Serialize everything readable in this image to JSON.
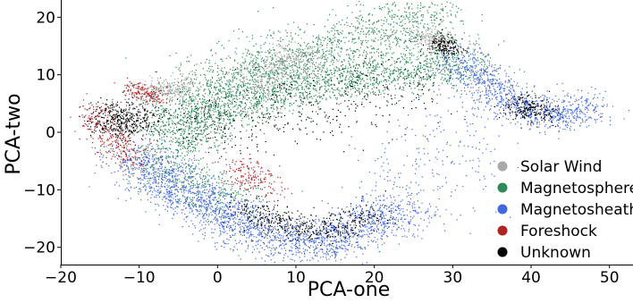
{
  "chart_data": {
    "type": "scatter",
    "title": "",
    "xlabel": "PCA-one",
    "ylabel": "PCA-two",
    "xlim": [
      -20,
      53
    ],
    "ylim": [
      -23,
      23
    ],
    "xticks": [
      -20,
      -10,
      0,
      10,
      20,
      30,
      40,
      50
    ],
    "yticks": [
      -20,
      -10,
      0,
      10,
      20
    ],
    "xtick_labels": [
      "−20",
      "−10",
      "0",
      "10",
      "20",
      "30",
      "40",
      "50"
    ],
    "ytick_labels": [
      "−20",
      "−10",
      "0",
      "10",
      "20"
    ],
    "grid": false,
    "legend_position": "lower-right",
    "series": [
      {
        "name": "Magnetosphere",
        "color": "#2e8b57",
        "clusters": [
          {
            "path": [
              [
                -7,
                0
              ],
              [
                -2,
                7
              ],
              [
                5,
                11
              ],
              [
                13,
                14
              ],
              [
                22,
                18
              ],
              [
                28,
                20
              ]
            ],
            "spread": 3.2,
            "density": 1.0
          },
          {
            "path": [
              [
                -6,
                -3
              ],
              [
                0,
                4
              ],
              [
                10,
                8
              ],
              [
                20,
                10
              ],
              [
                33,
                12
              ]
            ],
            "spread": 2.4,
            "density": 1.0
          },
          {
            "path": [
              [
                -8,
                -5
              ],
              [
                -3,
                -9
              ],
              [
                3,
                -13
              ]
            ],
            "spread": 2.5,
            "density": 0.5
          }
        ]
      },
      {
        "name": "Solar Wind",
        "color": "#a9a9a9",
        "clusters": [
          {
            "path": [
              [
                -9,
                7
              ],
              [
                -4,
                8
              ]
            ],
            "spread": 1.3,
            "density": 0.5
          },
          {
            "path": [
              [
                4,
                8
              ],
              [
                8,
                12
              ],
              [
                12,
                14
              ]
            ],
            "spread": 1.6,
            "density": 0.5
          },
          {
            "path": [
              [
                26,
                17
              ],
              [
                29,
                15
              ]
            ],
            "spread": 0.9,
            "density": 0.4
          }
        ]
      },
      {
        "name": "Magnetosheath",
        "color": "#4169e1",
        "clusters": [
          {
            "path": [
              [
                -11,
                -4
              ],
              [
                -5,
                -10
              ],
              [
                0,
                -14
              ],
              [
                5,
                -17
              ],
              [
                10,
                -19
              ],
              [
                14,
                -19
              ],
              [
                19,
                -16
              ],
              [
                24,
                -13
              ]
            ],
            "spread": 2.4,
            "density": 1.3
          },
          {
            "path": [
              [
                31,
                13
              ],
              [
                34,
                9
              ],
              [
                38,
                5
              ],
              [
                42,
                3
              ],
              [
                46,
                4
              ],
              [
                48,
                4
              ]
            ],
            "spread": 1.8,
            "density": 1.0
          },
          {
            "path": [
              [
                24,
                -13
              ],
              [
                29,
                -1
              ],
              [
                33,
                7
              ]
            ],
            "spread": 4.5,
            "density": 0.15
          }
        ]
      },
      {
        "name": "Foreshock",
        "color": "#b22222",
        "clusters": [
          {
            "path": [
              [
                -16,
                4
              ],
              [
                -14,
                0
              ],
              [
                -12,
                -3
              ],
              [
                -10,
                -5
              ]
            ],
            "spread": 1.5,
            "density": 0.4
          },
          {
            "path": [
              [
                -11,
                8
              ],
              [
                -8,
                6
              ]
            ],
            "spread": 1.0,
            "density": 0.15
          },
          {
            "path": [
              [
                3,
                -6
              ],
              [
                6,
                -10
              ]
            ],
            "spread": 1.5,
            "density": 0.1
          }
        ]
      },
      {
        "name": "Unknown",
        "color": "#000000",
        "clusters": [
          {
            "path": [
              [
                -14,
                3
              ],
              [
                -12,
                2
              ],
              [
                -10,
                2
              ]
            ],
            "spread": 1.8,
            "density": 1.4
          },
          {
            "path": [
              [
                3,
                -13
              ],
              [
                8,
                -16
              ],
              [
                14,
                -17
              ],
              [
                20,
                -14
              ]
            ],
            "spread": 1.7,
            "density": 0.4
          },
          {
            "path": [
              [
                38,
                5
              ],
              [
                42,
                3
              ]
            ],
            "spread": 1.3,
            "density": 0.35
          },
          {
            "path": [
              [
                28,
                16
              ],
              [
                30,
                14
              ]
            ],
            "spread": 1.0,
            "density": 0.2
          },
          {
            "path": [
              [
                -6,
                0
              ],
              [
                10,
                4
              ],
              [
                25,
                9
              ]
            ],
            "spread": 4.0,
            "density": 0.2
          }
        ]
      }
    ]
  },
  "legend": {
    "items": [
      {
        "label": "Solar Wind",
        "color": "#a9a9a9"
      },
      {
        "label": "Magnetosphere",
        "color": "#2e8b57"
      },
      {
        "label": "Magnetosheath",
        "color": "#4169e1"
      },
      {
        "label": "Foreshock",
        "color": "#b22222"
      },
      {
        "label": "Unknown",
        "color": "#000000"
      }
    ]
  }
}
